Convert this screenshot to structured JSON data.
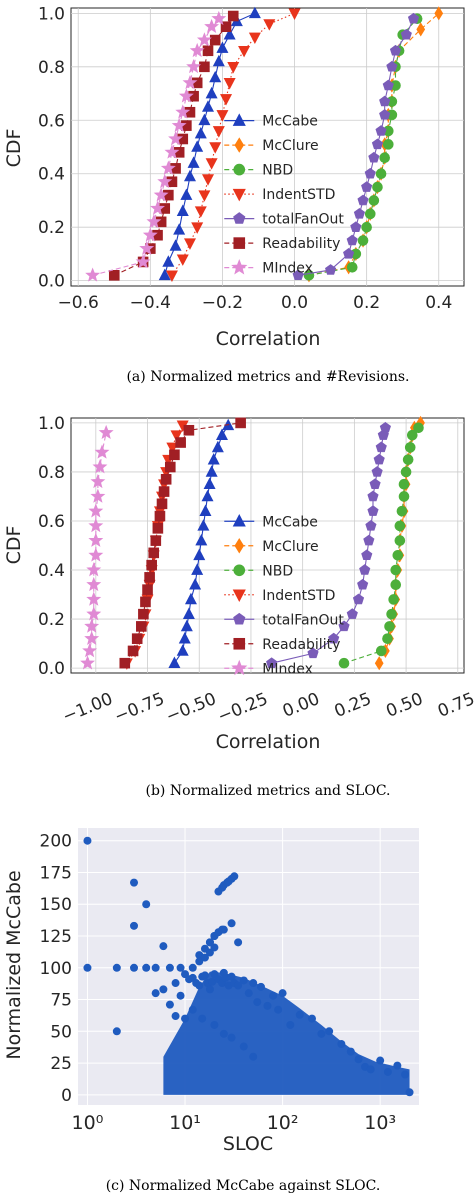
{
  "chart_data": [
    {
      "type": "line",
      "caption": "(a) Normalized metrics and #Revisions.",
      "xlabel": "Correlation",
      "ylabel": "CDF",
      "xlim": [
        -0.62,
        0.47
      ],
      "ylim": [
        -0.02,
        1.02
      ],
      "xticks": [
        -0.6,
        -0.4,
        -0.2,
        0.0,
        0.2,
        0.4
      ],
      "xtick_labels": [
        "−0.6",
        "−0.4",
        "−0.2",
        "0.0",
        "0.2",
        "0.4"
      ],
      "yticks": [
        0.0,
        0.2,
        0.4,
        0.6,
        0.8,
        1.0
      ],
      "ytick_labels": [
        "0.0",
        "0.2",
        "0.4",
        "0.6",
        "0.8",
        "1.0"
      ],
      "grid": true,
      "legend_position": "center-right",
      "series": [
        {
          "name": "McCabe",
          "color": "#1f3fbf",
          "linestyle": "solid",
          "marker": "triangle-up",
          "x": [
            -0.36,
            -0.35,
            -0.33,
            -0.32,
            -0.31,
            -0.3,
            -0.29,
            -0.28,
            -0.27,
            -0.26,
            -0.25,
            -0.24,
            -0.23,
            -0.22,
            -0.21,
            -0.2,
            -0.18,
            -0.16,
            -0.11
          ],
          "y": [
            0.02,
            0.07,
            0.13,
            0.19,
            0.26,
            0.32,
            0.39,
            0.44,
            0.5,
            0.55,
            0.6,
            0.65,
            0.7,
            0.76,
            0.82,
            0.87,
            0.92,
            0.97,
            1.0
          ]
        },
        {
          "name": "McClure",
          "color": "#ff7f0e",
          "linestyle": "dashed",
          "marker": "diamond",
          "x": [
            0.04,
            0.15,
            0.17,
            0.19,
            0.2,
            0.21,
            0.22,
            0.23,
            0.24,
            0.25,
            0.25,
            0.26,
            0.26,
            0.27,
            0.27,
            0.28,
            0.29,
            0.35,
            0.4
          ],
          "y": [
            0.02,
            0.05,
            0.1,
            0.15,
            0.2,
            0.25,
            0.3,
            0.35,
            0.4,
            0.46,
            0.51,
            0.56,
            0.62,
            0.67,
            0.73,
            0.8,
            0.86,
            0.94,
            1.0
          ]
        },
        {
          "name": "NBD",
          "color": "#4caf3a",
          "linestyle": "dashed",
          "marker": "circle",
          "x": [
            0.04,
            0.16,
            0.17,
            0.19,
            0.2,
            0.21,
            0.22,
            0.23,
            0.24,
            0.25,
            0.26,
            0.26,
            0.27,
            0.27,
            0.28,
            0.28,
            0.29,
            0.3,
            0.34
          ],
          "y": [
            0.02,
            0.05,
            0.1,
            0.15,
            0.2,
            0.25,
            0.3,
            0.35,
            0.4,
            0.46,
            0.51,
            0.56,
            0.62,
            0.67,
            0.73,
            0.8,
            0.86,
            0.92,
            0.98
          ]
        },
        {
          "name": "IndentSTD",
          "color": "#e8341c",
          "linestyle": "dotted",
          "marker": "triangle-down",
          "x": [
            -0.34,
            -0.31,
            -0.29,
            -0.27,
            -0.26,
            -0.25,
            -0.24,
            -0.23,
            -0.22,
            -0.21,
            -0.2,
            -0.19,
            -0.18,
            -0.17,
            -0.14,
            -0.11,
            -0.07,
            0.0
          ],
          "y": [
            0.02,
            0.08,
            0.14,
            0.2,
            0.26,
            0.32,
            0.38,
            0.44,
            0.5,
            0.56,
            0.62,
            0.68,
            0.74,
            0.8,
            0.86,
            0.91,
            0.96,
            1.0
          ]
        },
        {
          "name": "totalFanOut",
          "color": "#7a5cb8",
          "linestyle": "solid",
          "marker": "pentagon",
          "x": [
            0.01,
            0.1,
            0.15,
            0.16,
            0.17,
            0.18,
            0.19,
            0.2,
            0.21,
            0.22,
            0.23,
            0.24,
            0.25,
            0.25,
            0.26,
            0.27,
            0.28,
            0.31,
            0.33
          ],
          "y": [
            0.02,
            0.04,
            0.1,
            0.15,
            0.2,
            0.25,
            0.3,
            0.35,
            0.4,
            0.46,
            0.51,
            0.56,
            0.62,
            0.67,
            0.73,
            0.8,
            0.86,
            0.92,
            0.98
          ]
        },
        {
          "name": "Readability",
          "color": "#a11f24",
          "linestyle": "dashed",
          "marker": "square",
          "x": [
            -0.5,
            -0.42,
            -0.4,
            -0.38,
            -0.37,
            -0.36,
            -0.35,
            -0.34,
            -0.33,
            -0.32,
            -0.31,
            -0.3,
            -0.29,
            -0.28,
            -0.27,
            -0.25,
            -0.24,
            -0.22,
            -0.19,
            -0.17
          ],
          "y": [
            0.02,
            0.07,
            0.12,
            0.17,
            0.22,
            0.27,
            0.32,
            0.37,
            0.42,
            0.48,
            0.53,
            0.58,
            0.63,
            0.69,
            0.74,
            0.8,
            0.86,
            0.9,
            0.95,
            0.99
          ]
        },
        {
          "name": "MIndex",
          "color": "#e08ad4",
          "linestyle": "dashed",
          "marker": "star",
          "x": [
            -0.56,
            -0.42,
            -0.41,
            -0.4,
            -0.39,
            -0.38,
            -0.37,
            -0.36,
            -0.35,
            -0.34,
            -0.33,
            -0.32,
            -0.31,
            -0.3,
            -0.29,
            -0.28,
            -0.27,
            -0.25,
            -0.23,
            -0.21
          ],
          "y": [
            0.02,
            0.07,
            0.12,
            0.17,
            0.22,
            0.27,
            0.32,
            0.37,
            0.42,
            0.48,
            0.53,
            0.58,
            0.63,
            0.69,
            0.74,
            0.8,
            0.86,
            0.9,
            0.95,
            0.98
          ]
        }
      ]
    },
    {
      "type": "line",
      "caption": "(b) Normalized metrics and SLOC.",
      "xlabel": "Correlation",
      "ylabel": "CDF",
      "xlim": [
        -1.12,
        0.78
      ],
      "ylim": [
        -0.02,
        1.02
      ],
      "xticks": [
        -1.0,
        -0.75,
        -0.5,
        -0.25,
        0.0,
        0.25,
        0.5,
        0.75
      ],
      "xtick_labels": [
        "−1.00",
        "−0.75",
        "−0.50",
        "−0.25",
        "0.00",
        "0.25",
        "0.50",
        "0.75"
      ],
      "yticks": [
        0.0,
        0.2,
        0.4,
        0.6,
        0.8,
        1.0
      ],
      "ytick_labels": [
        "0.0",
        "0.2",
        "0.4",
        "0.6",
        "0.8",
        "1.0"
      ],
      "grid": true,
      "legend_position": "center-right",
      "series": [
        {
          "name": "McCabe",
          "color": "#1f3fbf",
          "linestyle": "solid",
          "marker": "triangle-up",
          "x": [
            -0.62,
            -0.58,
            -0.57,
            -0.56,
            -0.55,
            -0.54,
            -0.52,
            -0.51,
            -0.5,
            -0.49,
            -0.48,
            -0.47,
            -0.46,
            -0.45,
            -0.44,
            -0.43,
            -0.41,
            -0.39,
            -0.36
          ],
          "y": [
            0.02,
            0.07,
            0.12,
            0.17,
            0.22,
            0.28,
            0.34,
            0.4,
            0.46,
            0.52,
            0.58,
            0.64,
            0.7,
            0.75,
            0.8,
            0.85,
            0.9,
            0.95,
            0.99
          ]
        },
        {
          "name": "McClure",
          "color": "#ff7f0e",
          "linestyle": "dashed",
          "marker": "diamond",
          "x": [
            0.37,
            0.4,
            0.42,
            0.43,
            0.44,
            0.45,
            0.45,
            0.46,
            0.47,
            0.47,
            0.48,
            0.49,
            0.49,
            0.5,
            0.5,
            0.51,
            0.52,
            0.53,
            0.54,
            0.57
          ],
          "y": [
            0.02,
            0.07,
            0.12,
            0.17,
            0.22,
            0.28,
            0.34,
            0.4,
            0.46,
            0.52,
            0.58,
            0.64,
            0.7,
            0.75,
            0.8,
            0.85,
            0.9,
            0.95,
            0.98,
            1.0
          ]
        },
        {
          "name": "NBD",
          "color": "#4caf3a",
          "linestyle": "dashed",
          "marker": "circle",
          "x": [
            0.2,
            0.38,
            0.41,
            0.42,
            0.43,
            0.44,
            0.45,
            0.45,
            0.46,
            0.47,
            0.47,
            0.48,
            0.49,
            0.49,
            0.5,
            0.51,
            0.52,
            0.53,
            0.56
          ],
          "y": [
            0.02,
            0.07,
            0.12,
            0.17,
            0.22,
            0.28,
            0.34,
            0.4,
            0.46,
            0.52,
            0.58,
            0.64,
            0.7,
            0.75,
            0.8,
            0.85,
            0.9,
            0.95,
            0.98
          ]
        },
        {
          "name": "IndentSTD",
          "color": "#e8341c",
          "linestyle": "dotted",
          "marker": "triangle-down",
          "x": [
            -0.85,
            -0.81,
            -0.79,
            -0.77,
            -0.76,
            -0.75,
            -0.74,
            -0.73,
            -0.72,
            -0.71,
            -0.7,
            -0.69,
            -0.68,
            -0.67,
            -0.66,
            -0.65,
            -0.63,
            -0.61,
            -0.58
          ],
          "y": [
            0.02,
            0.07,
            0.12,
            0.17,
            0.22,
            0.28,
            0.34,
            0.4,
            0.46,
            0.52,
            0.58,
            0.64,
            0.7,
            0.75,
            0.8,
            0.85,
            0.9,
            0.95,
            0.99
          ]
        },
        {
          "name": "totalFanOut",
          "color": "#7a5cb8",
          "linestyle": "solid",
          "marker": "pentagon",
          "x": [
            -0.15,
            0.05,
            0.15,
            0.2,
            0.24,
            0.27,
            0.29,
            0.3,
            0.31,
            0.32,
            0.33,
            0.34,
            0.34,
            0.35,
            0.36,
            0.37,
            0.38,
            0.39,
            0.4
          ],
          "y": [
            0.02,
            0.06,
            0.12,
            0.17,
            0.22,
            0.28,
            0.34,
            0.4,
            0.46,
            0.52,
            0.58,
            0.64,
            0.7,
            0.75,
            0.8,
            0.85,
            0.9,
            0.95,
            0.98
          ]
        },
        {
          "name": "Readability",
          "color": "#a11f24",
          "linestyle": "dashed",
          "marker": "square",
          "x": [
            -0.86,
            -0.82,
            -0.8,
            -0.78,
            -0.77,
            -0.76,
            -0.75,
            -0.74,
            -0.73,
            -0.72,
            -0.71,
            -0.7,
            -0.69,
            -0.68,
            -0.67,
            -0.66,
            -0.64,
            -0.62,
            -0.59,
            -0.55,
            -0.3
          ],
          "y": [
            0.02,
            0.07,
            0.12,
            0.17,
            0.22,
            0.27,
            0.32,
            0.37,
            0.42,
            0.47,
            0.52,
            0.57,
            0.62,
            0.67,
            0.72,
            0.77,
            0.82,
            0.87,
            0.92,
            0.97,
            1.0
          ]
        },
        {
          "name": "MIndex",
          "color": "#e08ad4",
          "linestyle": "dashed",
          "marker": "star",
          "x": [
            -1.04,
            -1.03,
            -1.02,
            -1.02,
            -1.01,
            -1.01,
            -1.01,
            -1.01,
            -1.0,
            -1.0,
            -1.0,
            -1.0,
            -0.99,
            -0.99,
            -0.98,
            -0.97,
            -0.95
          ],
          "y": [
            0.02,
            0.07,
            0.12,
            0.17,
            0.22,
            0.28,
            0.34,
            0.4,
            0.46,
            0.52,
            0.58,
            0.64,
            0.7,
            0.76,
            0.82,
            0.88,
            0.96
          ]
        }
      ]
    },
    {
      "type": "scatter",
      "caption": "(c) Normalized McCabe against SLOC.",
      "xlabel": "SLOC",
      "ylabel": "Normalized McCabe",
      "xscale": "log",
      "xlim": [
        0.8,
        2500
      ],
      "ylim": [
        -8,
        210
      ],
      "xticks": [
        1,
        10,
        100,
        1000
      ],
      "xtick_labels": [
        "10⁰",
        "10¹",
        "10²",
        "10³"
      ],
      "yticks": [
        0,
        25,
        50,
        75,
        100,
        125,
        150,
        175,
        200
      ],
      "ytick_labels": [
        "0",
        "25",
        "50",
        "75",
        "100",
        "125",
        "150",
        "175",
        "200"
      ],
      "grid": true,
      "color": "#1f5bbf",
      "points": {
        "x": [
          1,
          1,
          2,
          2,
          3,
          3,
          3,
          4,
          4,
          5,
          5,
          6,
          6,
          7,
          7,
          8,
          8,
          9,
          9,
          10,
          10,
          11,
          12,
          12,
          13,
          14,
          15,
          15,
          16,
          17,
          18,
          19,
          20,
          20,
          22,
          24,
          25,
          25,
          26,
          28,
          30,
          30,
          32,
          35,
          40,
          40,
          45,
          50,
          50,
          55,
          60,
          70,
          80,
          90,
          100,
          120,
          150,
          200,
          250,
          300,
          400,
          500,
          600,
          700,
          800,
          1000,
          1200,
          1500,
          1800,
          2000,
          22,
          24,
          25,
          27,
          28,
          30,
          32,
          18,
          20,
          25,
          30,
          35,
          14,
          16,
          18,
          20,
          22,
          24,
          12,
          14,
          16,
          18,
          20
        ],
        "y": [
          200,
          100,
          100,
          50,
          167,
          133,
          100,
          150,
          100,
          100,
          80,
          117,
          83,
          100,
          71,
          88,
          62,
          100,
          78,
          95,
          60,
          91,
          92,
          67,
          88,
          86,
          93,
          60,
          94,
          88,
          83,
          89,
          95,
          55,
          91,
          88,
          96,
          48,
          92,
          86,
          93,
          45,
          88,
          86,
          90,
          38,
          80,
          88,
          30,
          73,
          85,
          70,
          78,
          67,
          80,
          55,
          63,
          60,
          48,
          50,
          40,
          34,
          28,
          22,
          20,
          27,
          18,
          23,
          16,
          2,
          160,
          163,
          165,
          167,
          168,
          170,
          172,
          120,
          125,
          130,
          135,
          120,
          110,
          115,
          120,
          125,
          128,
          130,
          100,
          105,
          108,
          112,
          116
        ]
      }
    }
  ]
}
